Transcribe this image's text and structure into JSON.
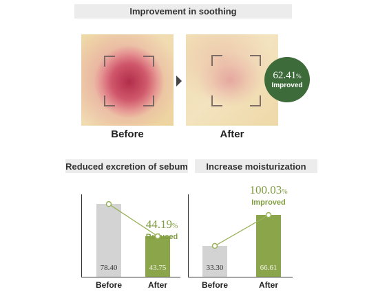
{
  "soothing": {
    "title": "Improvement in soothing",
    "before_label": "Before",
    "after_label": "After",
    "badge": {
      "value": "62.41",
      "unit": "%",
      "text": "Improved"
    }
  },
  "sebum": {
    "title": "Reduced excretion of sebum",
    "change": {
      "value": "44.19",
      "unit": "%",
      "text": "Reduced"
    }
  },
  "moisture": {
    "title": "Increase moisturization",
    "change": {
      "value": "100.03",
      "unit": "%",
      "text": "Improved"
    }
  },
  "colors": {
    "gray_bar": "#d3d3d3",
    "green_bar": "#8aa54a",
    "badge": "#3d6b3a",
    "accent_text": "#7f9d3f"
  },
  "chart_data": [
    {
      "type": "bar",
      "title": "Reduced excretion of sebum",
      "categories": [
        "Before",
        "After"
      ],
      "values": [
        78.4,
        43.75
      ],
      "value_labels": [
        "78.40",
        "43.75"
      ],
      "annotation": "44.19% Reduced"
    },
    {
      "type": "bar",
      "title": "Increase moisturization",
      "categories": [
        "Before",
        "After"
      ],
      "values": [
        33.3,
        66.61
      ],
      "value_labels": [
        "33.30",
        "66.61"
      ],
      "annotation": "100.03% Improved"
    }
  ]
}
